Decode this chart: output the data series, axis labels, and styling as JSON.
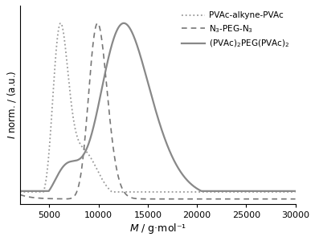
{
  "title": "",
  "xlabel": "$\\mathit{M}$ / g·mol⁻¹",
  "ylabel": "$\\mathit{I}$ norm. / (a.u.)",
  "xlim": [
    2000,
    30000
  ],
  "ylim": [
    -0.03,
    1.1
  ],
  "xticks": [
    5000,
    10000,
    15000,
    20000,
    25000,
    30000
  ],
  "xtick_labels": [
    "5000",
    "10000",
    "15000",
    "20000",
    "25000",
    "30000"
  ],
  "curve1": {
    "label": "PVAc-alkyne-PVAc",
    "style": "dotted",
    "color": "#999999",
    "peak1_mu": 8.72,
    "peak1_sigma": 0.13,
    "peak1_height": 1.0,
    "peak2_mu": 9.07,
    "peak2_sigma": 0.14,
    "peak2_height": 0.25,
    "baseline": 0.04
  },
  "curve2": {
    "label": "N$_3$-PEG-N$_3$",
    "style": "dashed",
    "color": "#777777",
    "peak1_mu": 9.2,
    "peak1_sigma": 0.095,
    "peak1_height": 1.0,
    "baseline": 0.0
  },
  "curve3": {
    "label": "(PVAc)$_2$PEG(PVAc)$_2$",
    "style": "solid",
    "color": "#888888",
    "peak1_mu": 9.44,
    "peak1_sigma": 0.195,
    "peak1_height": 1.0,
    "peak2_mu": 8.85,
    "peak2_sigma": 0.2,
    "peak2_height": 0.2,
    "baseline": 0.045,
    "lw": 1.6
  }
}
